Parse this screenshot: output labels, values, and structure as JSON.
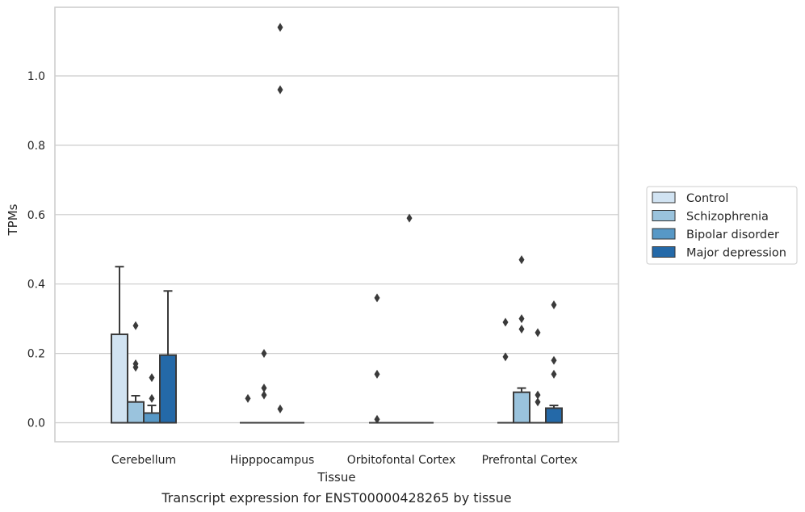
{
  "caption": "Transcript expression for ENST00000428265 by tissue",
  "chart_data": {
    "type": "box",
    "xlabel": "Tissue",
    "ylabel": "TPMs",
    "ylim": [
      -0.055,
      1.2
    ],
    "yticks": [
      0.0,
      0.2,
      0.4,
      0.6,
      0.8,
      1.0
    ],
    "ytick_labels": [
      "0.0",
      "0.2",
      "0.4",
      "0.6",
      "0.8",
      "1.0"
    ],
    "grid": "horizontal",
    "legend_position": "center-right outside",
    "categories": [
      "Cerebellum",
      "Hipppocampus",
      "Orbitofontal Cortex",
      "Prefrontal Cortex"
    ],
    "series": [
      {
        "name": "Control",
        "color": "#d1e3f2",
        "boxes": [
          {
            "q1": 0.0,
            "median": 0.0,
            "q3": 0.255,
            "whisker_low": 0.0,
            "whisker_high": 0.45,
            "outliers": []
          },
          {
            "q1": 0.0,
            "median": 0.0,
            "q3": 0.0,
            "whisker_low": 0.0,
            "whisker_high": 0.0,
            "outliers": [
              0.07
            ]
          },
          {
            "q1": 0.0,
            "median": 0.0,
            "q3": 0.0,
            "whisker_low": 0.0,
            "whisker_high": 0.0,
            "outliers": [
              0.36,
              0.14,
              0.01
            ]
          },
          {
            "q1": 0.0,
            "median": 0.0,
            "q3": 0.0,
            "whisker_low": 0.0,
            "whisker_high": 0.0,
            "outliers": [
              0.29,
              0.19
            ]
          }
        ]
      },
      {
        "name": "Schizophrenia",
        "color": "#9ac3dd",
        "boxes": [
          {
            "q1": 0.0,
            "median": 0.0,
            "q3": 0.06,
            "whisker_low": 0.0,
            "whisker_high": 0.078,
            "outliers": [
              0.28,
              0.17,
              0.16
            ]
          },
          {
            "q1": 0.0,
            "median": 0.0,
            "q3": 0.0,
            "whisker_low": 0.0,
            "whisker_high": 0.0,
            "outliers": [
              0.2,
              0.1,
              0.08
            ]
          },
          {
            "q1": 0.0,
            "median": 0.0,
            "q3": 0.0,
            "whisker_low": 0.0,
            "whisker_high": 0.0,
            "outliers": []
          },
          {
            "q1": 0.0,
            "median": 0.0,
            "q3": 0.088,
            "whisker_low": 0.0,
            "whisker_high": 0.1,
            "outliers": [
              0.47,
              0.3,
              0.27
            ]
          }
        ]
      },
      {
        "name": "Bipolar disorder",
        "color": "#5798c6",
        "boxes": [
          {
            "q1": 0.0,
            "median": 0.0,
            "q3": 0.028,
            "whisker_low": 0.0,
            "whisker_high": 0.05,
            "outliers": [
              0.13,
              0.07
            ]
          },
          {
            "q1": 0.0,
            "median": 0.0,
            "q3": 0.0,
            "whisker_low": 0.0,
            "whisker_high": 0.0,
            "outliers": [
              1.14,
              0.96,
              0.04
            ]
          },
          {
            "q1": 0.0,
            "median": 0.0,
            "q3": 0.0,
            "whisker_low": 0.0,
            "whisker_high": 0.0,
            "outliers": [
              0.59
            ]
          },
          {
            "q1": 0.0,
            "median": 0.0,
            "q3": 0.0,
            "whisker_low": 0.0,
            "whisker_high": 0.0,
            "outliers": [
              0.26,
              0.08,
              0.06
            ]
          }
        ]
      },
      {
        "name": "Major depression",
        "color": "#2469a8",
        "boxes": [
          {
            "q1": 0.0,
            "median": 0.0,
            "q3": 0.195,
            "whisker_low": 0.0,
            "whisker_high": 0.38,
            "outliers": []
          },
          {
            "q1": 0.0,
            "median": 0.0,
            "q3": 0.0,
            "whisker_low": 0.0,
            "whisker_high": 0.0,
            "outliers": []
          },
          {
            "q1": 0.0,
            "median": 0.0,
            "q3": 0.0,
            "whisker_low": 0.0,
            "whisker_high": 0.0,
            "outliers": []
          },
          {
            "q1": 0.0,
            "median": 0.0,
            "q3": 0.042,
            "whisker_low": 0.0,
            "whisker_high": 0.05,
            "outliers": [
              0.34,
              0.18,
              0.14
            ]
          }
        ]
      }
    ]
  }
}
